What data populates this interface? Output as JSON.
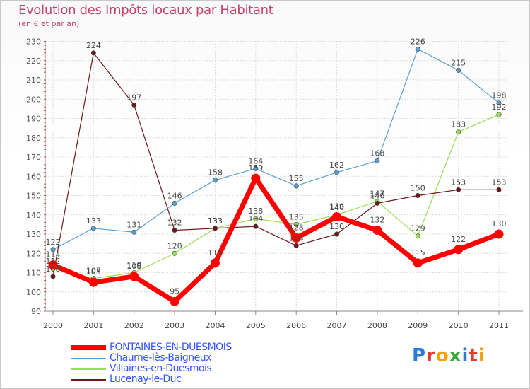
{
  "title": "Evolution des Impôts locaux par Habitant",
  "subtitle": "(en € et par an)",
  "brand": "Proxiti",
  "chart_data": {
    "type": "line",
    "title": "Evolution des Impôts locaux par Habitant",
    "subtitle": "(en € et par an)",
    "xlabel": "",
    "ylabel": "",
    "x": [
      "2000",
      "2001",
      "2002",
      "2003",
      "2004",
      "2005",
      "2006",
      "2007",
      "2008",
      "2009",
      "2010",
      "2011"
    ],
    "yticks": [
      90,
      100,
      110,
      120,
      130,
      140,
      150,
      160,
      170,
      180,
      190,
      200,
      210,
      220,
      230
    ],
    "ylim": [
      90,
      230
    ],
    "grid": true,
    "legend_position": "bottom-left",
    "series": [
      {
        "name": "FONTAINES-EN-DUESMOIS",
        "color": "#ff0000",
        "labelColor": "#3355ff",
        "thick": true,
        "values": [
          114,
          105,
          108,
          95,
          115,
          159,
          128,
          139,
          132,
          115,
          122,
          130
        ]
      },
      {
        "name": "Chaume-lès-Baigneux",
        "color": "#5a9fd4",
        "labelColor": "#3355ff",
        "thick": false,
        "values": [
          122,
          133,
          131,
          146,
          158,
          164,
          155,
          162,
          168,
          226,
          215,
          198
        ]
      },
      {
        "name": "Villaines-en-Duesmois",
        "color": "#99dd55",
        "labelColor": "#3355ff",
        "thick": false,
        "values": [
          112,
          107,
          110,
          120,
          133,
          138,
          135,
          140,
          147,
          129,
          183,
          192
        ]
      },
      {
        "name": "Lucenay-le-Duc",
        "color": "#6b1a1a",
        "labelColor": "#3355ff",
        "thick": false,
        "values": [
          108,
          224,
          197,
          132,
          133,
          134,
          124,
          130,
          146,
          150,
          153,
          153
        ]
      }
    ]
  }
}
